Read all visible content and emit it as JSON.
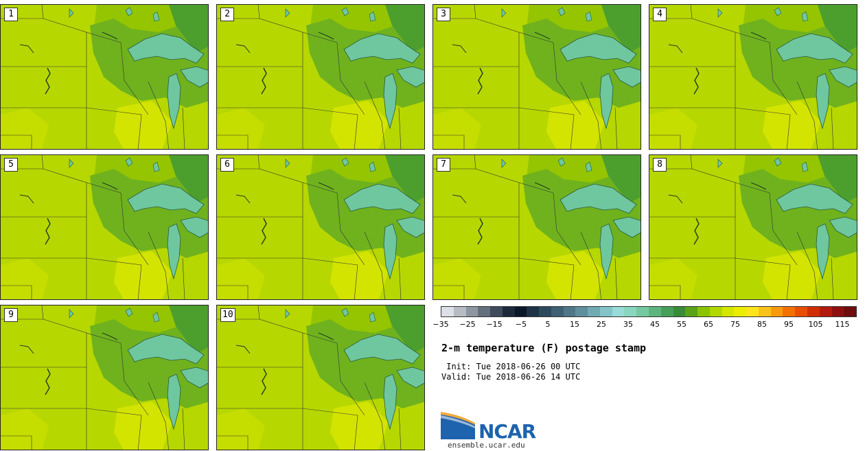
{
  "stamps": [
    "1",
    "2",
    "3",
    "4",
    "5",
    "6",
    "7",
    "8",
    "9",
    "10"
  ],
  "colorbar": {
    "colors": [
      "#dde1e6",
      "#b7bcc4",
      "#8e96a1",
      "#65707d",
      "#3f4b5c",
      "#1c2a3c",
      "#0b1829",
      "#1e3446",
      "#2d4a5c",
      "#3e6072",
      "#4f7787",
      "#5f8f9d",
      "#72aab2",
      "#84c4c8",
      "#97dcd8",
      "#8bd6bf",
      "#75c8a0",
      "#5eb67e",
      "#46a05a",
      "#398c36",
      "#5aa318",
      "#8ac400",
      "#b3d800",
      "#d5e600",
      "#ecee00",
      "#fde41c",
      "#fbc31a",
      "#f89a0d",
      "#f47000",
      "#e84e00",
      "#d02e00",
      "#b3190c",
      "#8d1010",
      "#6e0f0f"
    ],
    "ticks": [
      "−35",
      "−25",
      "−15",
      "−5",
      "5",
      "15",
      "25",
      "35",
      "45",
      "55",
      "65",
      "75",
      "85",
      "95",
      "105",
      "115"
    ]
  },
  "title": "2-m temperature (F) postage stamp",
  "init": " Init: Tue 2018-06-26 00 UTC",
  "valid": "Valid: Tue 2018-06-26 14 UTC",
  "logo_text": "NCAR",
  "site": "ensemble.ucar.edu"
}
